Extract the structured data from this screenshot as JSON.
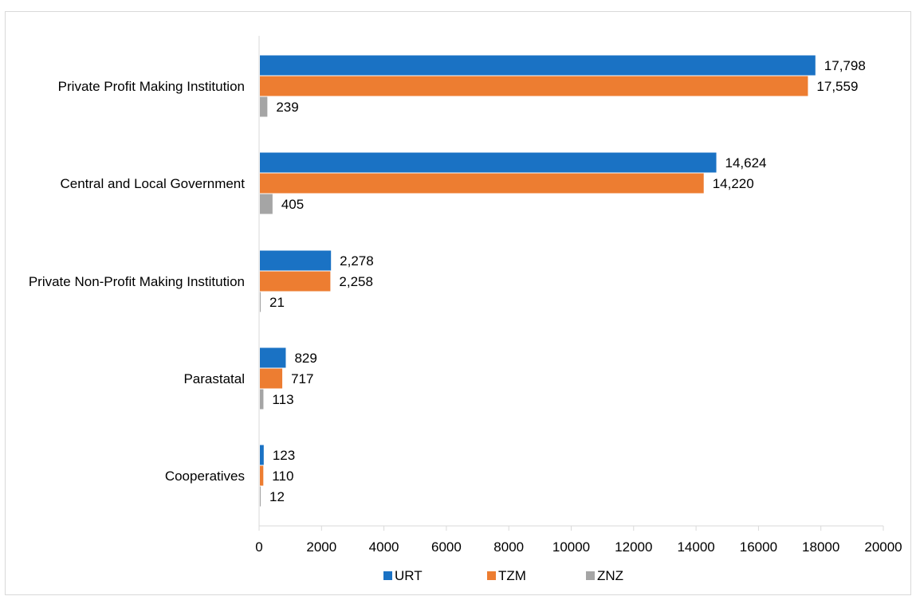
{
  "chart_data": {
    "type": "bar",
    "orientation": "horizontal",
    "categories": [
      "Private Profit Making Institution",
      "Central and Local Government",
      "Private Non-Profit Making Institution",
      "Parastatal",
      "Cooperatives"
    ],
    "series": [
      {
        "name": "URT",
        "color": "#1a72c4",
        "values": [
          17798,
          14624,
          2278,
          829,
          123
        ],
        "labels": [
          "17,798",
          "14,624",
          "2,278",
          "829",
          "123"
        ]
      },
      {
        "name": "TZM",
        "color": "#ed7d31",
        "values": [
          17559,
          14220,
          2258,
          717,
          110
        ],
        "labels": [
          "17,559",
          "14,220",
          "2,258",
          "717",
          "110"
        ]
      },
      {
        "name": "ZNZ",
        "color": "#a5a5a5",
        "values": [
          239,
          405,
          21,
          113,
          12
        ],
        "labels": [
          "239",
          "405",
          "21",
          "113",
          "12"
        ]
      }
    ],
    "xlim": [
      0,
      20000
    ],
    "xticks": [
      "0",
      "2000",
      "4000",
      "6000",
      "8000",
      "10000",
      "12000",
      "14000",
      "16000",
      "18000",
      "20000"
    ],
    "title": "",
    "xlabel": "",
    "ylabel": "",
    "grid": false,
    "legend_position": "bottom"
  }
}
